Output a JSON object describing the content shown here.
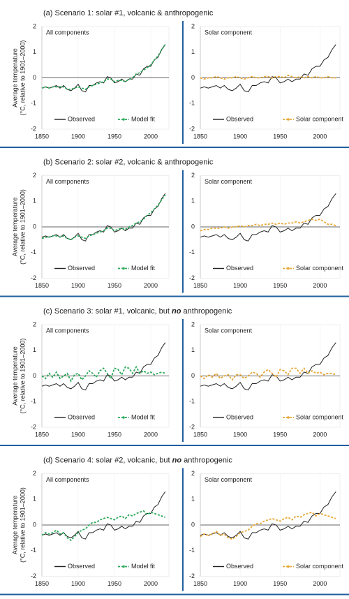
{
  "headings": [
    [
      "(a) Scenario 1: solar #1, volcanic & anthropogenic"
    ],
    [
      "(b) Scenario 2: solar #2, volcanic & anthropogenic"
    ],
    [
      "(c) Scenario 3: solar #1, volcanic, but ",
      "no",
      " anthropogenic"
    ],
    [
      "(d) Scenario 4: solar #2, volcanic, but ",
      "no",
      " anthropogenic"
    ]
  ],
  "chart_data": [
    {
      "type": "line",
      "title": "All components",
      "ylabel": [
        "Average temperature",
        "(°C, relative to 1901–2000)"
      ],
      "x": [
        1850,
        1855,
        1860,
        1865,
        1870,
        1875,
        1880,
        1885,
        1890,
        1895,
        1900,
        1905,
        1910,
        1915,
        1920,
        1925,
        1930,
        1935,
        1940,
        1945,
        1950,
        1955,
        1960,
        1965,
        1970,
        1975,
        1980,
        1985,
        1990,
        1995,
        2000,
        2005,
        2010,
        2015,
        2020
      ],
      "xlim": [
        1850,
        2025
      ],
      "xticks": [
        1850,
        1900,
        1950,
        2000
      ],
      "ylim": [
        -2,
        2
      ],
      "yticks": [
        -2,
        -1,
        0,
        1,
        2
      ],
      "legend": "lower center",
      "series": [
        {
          "name": "Observed",
          "color": "#222222",
          "values": [
            -0.4,
            -0.35,
            -0.4,
            -0.35,
            -0.3,
            -0.4,
            -0.3,
            -0.45,
            -0.5,
            -0.4,
            -0.25,
            -0.5,
            -0.55,
            -0.3,
            -0.3,
            -0.2,
            -0.15,
            -0.2,
            0.05,
            0.0,
            -0.2,
            -0.15,
            -0.05,
            -0.15,
            -0.05,
            -0.05,
            0.15,
            0.1,
            0.35,
            0.45,
            0.45,
            0.7,
            0.8,
            1.1,
            1.3
          ]
        },
        {
          "name": "Model fit",
          "color": "#2eaa5c",
          "values": [
            -0.4,
            -0.35,
            -0.4,
            -0.35,
            -0.35,
            -0.35,
            -0.35,
            -0.45,
            -0.45,
            -0.4,
            -0.35,
            -0.4,
            -0.45,
            -0.35,
            -0.3,
            -0.25,
            -0.2,
            -0.15,
            -0.05,
            -0.05,
            -0.15,
            -0.1,
            -0.1,
            -0.15,
            -0.05,
            0.0,
            0.15,
            0.2,
            0.3,
            0.4,
            0.5,
            0.7,
            0.85,
            1.1,
            1.3
          ]
        }
      ]
    },
    {
      "type": "line",
      "title": "Solar component",
      "x": [
        1850,
        1855,
        1860,
        1865,
        1870,
        1875,
        1880,
        1885,
        1890,
        1895,
        1900,
        1905,
        1910,
        1915,
        1920,
        1925,
        1930,
        1935,
        1940,
        1945,
        1950,
        1955,
        1960,
        1965,
        1970,
        1975,
        1980,
        1985,
        1990,
        1995,
        2000,
        2005,
        2010,
        2015,
        2020
      ],
      "xlim": [
        1850,
        2025
      ],
      "xticks": [
        1850,
        1900,
        1950,
        2000
      ],
      "ylim": [
        -2,
        2
      ],
      "yticks": [
        -2,
        -1,
        0,
        1,
        2
      ],
      "legend": "lower center",
      "series": [
        {
          "name": "Observed",
          "color": "#222222",
          "values": [
            -0.4,
            -0.35,
            -0.4,
            -0.35,
            -0.3,
            -0.4,
            -0.3,
            -0.45,
            -0.5,
            -0.4,
            -0.25,
            -0.5,
            -0.55,
            -0.3,
            -0.3,
            -0.2,
            -0.15,
            -0.2,
            0.05,
            0.0,
            -0.2,
            -0.15,
            -0.05,
            -0.15,
            -0.05,
            -0.05,
            0.15,
            0.1,
            0.35,
            0.45,
            0.45,
            0.7,
            0.8,
            1.1,
            1.3
          ]
        },
        {
          "name": "Solar component",
          "color": "#e8a838",
          "values": [
            0,
            -0.05,
            0,
            0,
            0.05,
            0,
            -0.05,
            0,
            0,
            0.05,
            0,
            -0.05,
            0,
            0.05,
            0,
            0,
            0.05,
            0.05,
            0,
            0.05,
            0.05,
            0,
            0.1,
            0.05,
            0,
            0.05,
            0,
            0.05,
            0,
            0.05,
            0,
            0,
            0.05,
            0,
            0
          ]
        }
      ]
    },
    {
      "type": "line",
      "title": "All components",
      "ylabel": [
        "Average temperature",
        "(°C, relative to 1901–2000)"
      ],
      "x": [
        1850,
        1855,
        1860,
        1865,
        1870,
        1875,
        1880,
        1885,
        1890,
        1895,
        1900,
        1905,
        1910,
        1915,
        1920,
        1925,
        1930,
        1935,
        1940,
        1945,
        1950,
        1955,
        1960,
        1965,
        1970,
        1975,
        1980,
        1985,
        1990,
        1995,
        2000,
        2005,
        2010,
        2015,
        2020
      ],
      "xlim": [
        1850,
        2025
      ],
      "xticks": [
        1850,
        1900,
        1950,
        2000
      ],
      "ylim": [
        -2,
        2
      ],
      "yticks": [
        -2,
        -1,
        0,
        1,
        2
      ],
      "legend": "lower center",
      "series": [
        {
          "name": "Observed",
          "color": "#222222",
          "values": [
            -0.4,
            -0.35,
            -0.4,
            -0.35,
            -0.3,
            -0.4,
            -0.3,
            -0.45,
            -0.5,
            -0.4,
            -0.25,
            -0.5,
            -0.55,
            -0.3,
            -0.3,
            -0.2,
            -0.15,
            -0.2,
            0.05,
            0.0,
            -0.2,
            -0.15,
            -0.05,
            -0.15,
            -0.05,
            -0.05,
            0.15,
            0.1,
            0.35,
            0.45,
            0.45,
            0.7,
            0.8,
            1.1,
            1.3
          ]
        },
        {
          "name": "Model fit",
          "color": "#2eaa5c",
          "values": [
            -0.45,
            -0.4,
            -0.4,
            -0.35,
            -0.35,
            -0.4,
            -0.35,
            -0.45,
            -0.5,
            -0.4,
            -0.35,
            -0.4,
            -0.45,
            -0.35,
            -0.3,
            -0.25,
            -0.2,
            -0.15,
            -0.05,
            -0.05,
            -0.15,
            -0.1,
            -0.05,
            -0.1,
            0.0,
            0.05,
            0.15,
            0.2,
            0.3,
            0.45,
            0.55,
            0.7,
            0.85,
            1.05,
            1.25
          ]
        }
      ]
    },
    {
      "type": "line",
      "title": "Solar component",
      "x": [
        1850,
        1855,
        1860,
        1865,
        1870,
        1875,
        1880,
        1885,
        1890,
        1895,
        1900,
        1905,
        1910,
        1915,
        1920,
        1925,
        1930,
        1935,
        1940,
        1945,
        1950,
        1955,
        1960,
        1965,
        1970,
        1975,
        1980,
        1985,
        1990,
        1995,
        2000,
        2005,
        2010,
        2015,
        2020
      ],
      "xlim": [
        1850,
        2025
      ],
      "xticks": [
        1850,
        1900,
        1950,
        2000
      ],
      "ylim": [
        -2,
        2
      ],
      "yticks": [
        -2,
        -1,
        0,
        1,
        2
      ],
      "legend": "lower center",
      "series": [
        {
          "name": "Observed",
          "color": "#222222",
          "values": [
            -0.4,
            -0.35,
            -0.4,
            -0.35,
            -0.3,
            -0.4,
            -0.3,
            -0.45,
            -0.5,
            -0.4,
            -0.25,
            -0.5,
            -0.55,
            -0.3,
            -0.3,
            -0.2,
            -0.15,
            -0.2,
            0.05,
            0.0,
            -0.2,
            -0.15,
            -0.05,
            -0.15,
            -0.05,
            -0.05,
            0.15,
            0.1,
            0.35,
            0.45,
            0.45,
            0.7,
            0.8,
            1.1,
            1.3
          ]
        },
        {
          "name": "Solar component",
          "color": "#e8a838",
          "values": [
            -0.15,
            -0.1,
            -0.1,
            -0.05,
            -0.05,
            -0.05,
            0,
            -0.05,
            0,
            0,
            0.05,
            0,
            0.05,
            0.05,
            0.1,
            0.05,
            0.1,
            0.1,
            0.15,
            0.1,
            0.15,
            0.1,
            0.15,
            0.15,
            0.2,
            0.15,
            0.2,
            0.25,
            0.3,
            0.25,
            0.3,
            0.2,
            0.1,
            0.1,
            0.05
          ]
        }
      ]
    },
    {
      "type": "line",
      "title": "All components",
      "ylabel": [
        "Average temperature",
        "(°C, relative to 1901–2000)"
      ],
      "x": [
        1850,
        1855,
        1860,
        1865,
        1870,
        1875,
        1880,
        1885,
        1890,
        1895,
        1900,
        1905,
        1910,
        1915,
        1920,
        1925,
        1930,
        1935,
        1940,
        1945,
        1950,
        1955,
        1960,
        1965,
        1970,
        1975,
        1980,
        1985,
        1990,
        1995,
        2000,
        2005,
        2010,
        2015,
        2020
      ],
      "xlim": [
        1850,
        2025
      ],
      "xticks": [
        1850,
        1900,
        1950,
        2000
      ],
      "ylim": [
        -2,
        2
      ],
      "yticks": [
        -2,
        -1,
        0,
        1,
        2
      ],
      "legend": "lower center",
      "series": [
        {
          "name": "Observed",
          "color": "#222222",
          "values": [
            -0.4,
            -0.35,
            -0.4,
            -0.35,
            -0.3,
            -0.4,
            -0.3,
            -0.45,
            -0.5,
            -0.4,
            -0.25,
            -0.5,
            -0.55,
            -0.3,
            -0.3,
            -0.2,
            -0.15,
            -0.2,
            0.05,
            0.0,
            -0.2,
            -0.15,
            -0.05,
            -0.15,
            -0.05,
            -0.05,
            0.15,
            0.1,
            0.35,
            0.45,
            0.45,
            0.7,
            0.8,
            1.1,
            1.3
          ]
        },
        {
          "name": "Model fit",
          "color": "#2eaa5c",
          "values": [
            0,
            -0.1,
            0.1,
            -0.05,
            0.15,
            -0.1,
            0,
            0.1,
            -0.2,
            0.05,
            0.1,
            -0.15,
            0,
            0.2,
            0.1,
            -0.05,
            0.2,
            0.3,
            0.1,
            -0.1,
            0.3,
            0.25,
            0.05,
            0.35,
            0.3,
            0.1,
            0.35,
            0.1,
            0.2,
            0.1,
            0.15,
            0.05,
            0.1,
            0.15,
            0.1
          ]
        }
      ]
    },
    {
      "type": "line",
      "title": "Solar component",
      "x": [
        1850,
        1855,
        1860,
        1865,
        1870,
        1875,
        1880,
        1885,
        1890,
        1895,
        1900,
        1905,
        1910,
        1915,
        1920,
        1925,
        1930,
        1935,
        1940,
        1945,
        1950,
        1955,
        1960,
        1965,
        1970,
        1975,
        1980,
        1985,
        1990,
        1995,
        2000,
        2005,
        2010,
        2015,
        2020
      ],
      "xlim": [
        1850,
        2025
      ],
      "xticks": [
        1850,
        1900,
        1950,
        2000
      ],
      "ylim": [
        -2,
        2
      ],
      "yticks": [
        -2,
        -1,
        0,
        1,
        2
      ],
      "legend": "lower center",
      "series": [
        {
          "name": "Observed",
          "color": "#222222",
          "values": [
            -0.4,
            -0.35,
            -0.4,
            -0.35,
            -0.3,
            -0.4,
            -0.3,
            -0.45,
            -0.5,
            -0.4,
            -0.25,
            -0.5,
            -0.55,
            -0.3,
            -0.3,
            -0.2,
            -0.15,
            -0.2,
            0.05,
            0.0,
            -0.2,
            -0.15,
            -0.05,
            -0.15,
            -0.05,
            -0.05,
            0.15,
            0.1,
            0.35,
            0.45,
            0.45,
            0.7,
            0.8,
            1.1,
            1.3
          ]
        },
        {
          "name": "Solar component",
          "color": "#e8a838",
          "values": [
            0,
            -0.1,
            0.05,
            -0.05,
            0.1,
            -0.1,
            0,
            0.05,
            -0.15,
            0.05,
            0.05,
            -0.1,
            0,
            0.15,
            0.1,
            -0.05,
            0.15,
            0.25,
            0.1,
            -0.05,
            0.25,
            0.2,
            0.05,
            0.3,
            0.3,
            0.1,
            0.3,
            0.1,
            0.2,
            0.1,
            0.15,
            0.05,
            0.1,
            0.1,
            0.05
          ]
        }
      ]
    },
    {
      "type": "line",
      "title": "All components",
      "ylabel": [
        "Average temperature",
        "(°C, relative to 1901–2000)"
      ],
      "x": [
        1850,
        1855,
        1860,
        1865,
        1870,
        1875,
        1880,
        1885,
        1890,
        1895,
        1900,
        1905,
        1910,
        1915,
        1920,
        1925,
        1930,
        1935,
        1940,
        1945,
        1950,
        1955,
        1960,
        1965,
        1970,
        1975,
        1980,
        1985,
        1990,
        1995,
        2000,
        2005,
        2010,
        2015,
        2020
      ],
      "xlim": [
        1850,
        2025
      ],
      "xticks": [
        1850,
        1900,
        1950,
        2000
      ],
      "ylim": [
        -2,
        2
      ],
      "yticks": [
        -2,
        -1,
        0,
        1,
        2
      ],
      "legend": "lower center",
      "series": [
        {
          "name": "Observed",
          "color": "#222222",
          "values": [
            -0.4,
            -0.35,
            -0.4,
            -0.35,
            -0.3,
            -0.4,
            -0.3,
            -0.45,
            -0.5,
            -0.4,
            -0.25,
            -0.5,
            -0.55,
            -0.3,
            -0.3,
            -0.2,
            -0.15,
            -0.2,
            0.05,
            0.0,
            -0.2,
            -0.15,
            -0.05,
            -0.15,
            -0.05,
            -0.05,
            0.15,
            0.1,
            0.35,
            0.45,
            0.45,
            0.7,
            0.8,
            1.1,
            1.3
          ]
        },
        {
          "name": "Model fit",
          "color": "#2eaa5c",
          "values": [
            -0.4,
            -0.3,
            -0.35,
            -0.3,
            -0.2,
            -0.35,
            -0.3,
            -0.5,
            -0.6,
            -0.45,
            -0.3,
            -0.2,
            -0.15,
            0,
            0.1,
            0.1,
            0.2,
            0.25,
            0.3,
            0.25,
            0.2,
            0.3,
            0.35,
            0.25,
            0.4,
            0.35,
            0.45,
            0.5,
            0.55,
            0.4,
            0.5,
            0.45,
            0.4,
            0.35,
            0.3
          ]
        }
      ]
    },
    {
      "type": "line",
      "title": "Solar component",
      "x": [
        1850,
        1855,
        1860,
        1865,
        1870,
        1875,
        1880,
        1885,
        1890,
        1895,
        1900,
        1905,
        1910,
        1915,
        1920,
        1925,
        1930,
        1935,
        1940,
        1945,
        1950,
        1955,
        1960,
        1965,
        1970,
        1975,
        1980,
        1985,
        1990,
        1995,
        2000,
        2005,
        2010,
        2015,
        2020
      ],
      "xlim": [
        1850,
        2025
      ],
      "xticks": [
        1850,
        1900,
        1950,
        2000
      ],
      "ylim": [
        -2,
        2
      ],
      "yticks": [
        -2,
        -1,
        0,
        1,
        2
      ],
      "legend": "lower center",
      "series": [
        {
          "name": "Observed",
          "color": "#222222",
          "values": [
            -0.4,
            -0.35,
            -0.4,
            -0.35,
            -0.3,
            -0.4,
            -0.3,
            -0.45,
            -0.5,
            -0.4,
            -0.25,
            -0.5,
            -0.55,
            -0.3,
            -0.3,
            -0.2,
            -0.15,
            -0.2,
            0.05,
            0.0,
            -0.2,
            -0.15,
            -0.05,
            -0.15,
            -0.05,
            -0.05,
            0.15,
            0.1,
            0.35,
            0.45,
            0.45,
            0.7,
            0.8,
            1.1,
            1.3
          ]
        },
        {
          "name": "Solar component",
          "color": "#e8a838",
          "values": [
            -0.45,
            -0.35,
            -0.4,
            -0.35,
            -0.25,
            -0.4,
            -0.35,
            -0.5,
            -0.55,
            -0.45,
            -0.3,
            -0.25,
            -0.2,
            -0.05,
            0.05,
            0.05,
            0.15,
            0.2,
            0.25,
            0.2,
            0.15,
            0.25,
            0.3,
            0.2,
            0.35,
            0.3,
            0.4,
            0.45,
            0.5,
            0.35,
            0.45,
            0.4,
            0.35,
            0.3,
            0.25
          ]
        }
      ]
    }
  ]
}
